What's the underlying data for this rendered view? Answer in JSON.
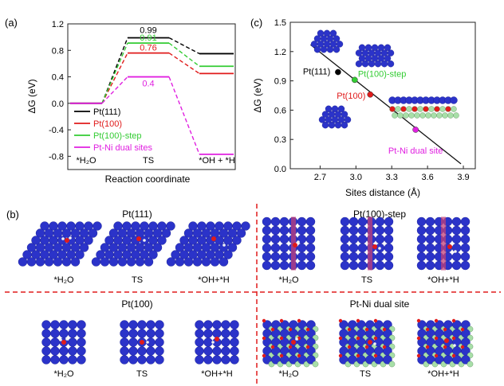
{
  "panel_labels": {
    "a": "(a)",
    "b": "(b)",
    "c": "(c)"
  },
  "colors": {
    "pt111": "#000000",
    "pt100": "#e01b1b",
    "step": "#33cc33",
    "ptni": "#e020e0",
    "pt_atom": "#2b33c9",
    "ni_atom": "#a8dfa8",
    "o_atom": "#e01b1b",
    "h_atom": "#f2f2f2",
    "divider": "#e01b1b",
    "step_row": "#c0407a"
  },
  "chart_data": [
    {
      "type": "line",
      "panel": "(a)",
      "xlabel": "Reaction coordinate",
      "ylabel": "ΔG (eV)",
      "ylim": [
        -1.0,
        1.2
      ],
      "yticks": [
        "1.2",
        "0.8",
        "0.4",
        "0.0",
        "-0.4",
        "-0.8"
      ],
      "ytick_values": [
        1.2,
        0.8,
        0.4,
        0.0,
        -0.4,
        -0.8
      ],
      "states": [
        "*H₂O",
        "TS",
        "*OH + *H"
      ],
      "legend_position": "center",
      "series": [
        {
          "name": "Pt(111)",
          "color": "#000000",
          "values": [
            0.0,
            0.99,
            0.75
          ],
          "label": "0.99"
        },
        {
          "name": "Pt(100)",
          "color": "#e01b1b",
          "values": [
            0.0,
            0.76,
            0.45
          ],
          "label": "0.76"
        },
        {
          "name": "Pt(100)-step",
          "color": "#33cc33",
          "values": [
            0.0,
            0.91,
            0.56
          ],
          "label": "0.91"
        },
        {
          "name": "Pt-Ni dual sites",
          "color": "#e020e0",
          "values": [
            0.0,
            0.4,
            -0.77
          ],
          "label": "0.4"
        }
      ]
    },
    {
      "type": "scatter",
      "panel": "(c)",
      "xlabel": "Sites distance (Å)",
      "ylabel": "ΔG (eV)",
      "xlim": [
        2.45,
        4.0
      ],
      "ylim": [
        0.0,
        1.5
      ],
      "xticks": [
        "2.7",
        "3.0",
        "3.3",
        "3.6",
        "3.9"
      ],
      "xtick_values": [
        2.7,
        3.0,
        3.3,
        3.6,
        3.9
      ],
      "yticks": [
        "0.0",
        "0.3",
        "0.6",
        "0.9",
        "1.2",
        "1.5"
      ],
      "ytick_values": [
        0.0,
        0.3,
        0.6,
        0.9,
        1.2,
        1.5
      ],
      "points": [
        {
          "name": "Pt(111)",
          "x": 2.85,
          "y": 0.99,
          "color": "#000000"
        },
        {
          "name": "Pt(100)-step",
          "x": 2.99,
          "y": 0.91,
          "color": "#33cc33"
        },
        {
          "name": "Pt(100)",
          "x": 3.12,
          "y": 0.76,
          "color": "#e01b1b"
        },
        {
          "name": "Pt-Ni dual site",
          "x": 3.5,
          "y": 0.4,
          "color": "#e020e0"
        }
      ],
      "fit_line": {
        "x": [
          2.62,
          3.88
        ],
        "y": [
          1.27,
          0.05
        ]
      }
    }
  ],
  "panel_b": {
    "groups": [
      {
        "title": "Pt(111)",
        "lattice": "hex",
        "labels": [
          "*H₂O",
          "TS",
          "*OH+*H"
        ]
      },
      {
        "title": "Pt(100)-step",
        "lattice": "step",
        "labels": [
          "*H₂O",
          "TS",
          "*OH+*H"
        ]
      },
      {
        "title": "Pt(100)",
        "lattice": "square",
        "labels": [
          "*H₂O",
          "TS",
          "*OH+*H"
        ]
      },
      {
        "title": "Pt-Ni dual site",
        "lattice": "ptni",
        "labels": [
          "*H₂O",
          "TS",
          "*OH+*H"
        ]
      }
    ]
  }
}
